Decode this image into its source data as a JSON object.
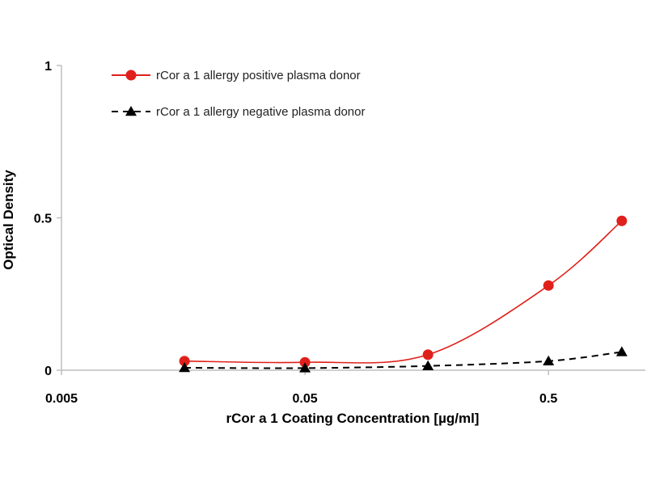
{
  "chart_data": {
    "type": "line",
    "title": "",
    "xlabel": "rCor a 1 Coating Concentration [µg/ml]",
    "ylabel": "Optical Density",
    "x_scale": "log",
    "xlim": [
      0.005,
      1.25
    ],
    "ylim": [
      0,
      1
    ],
    "x_ticks": [
      0.005,
      0.05,
      0.5
    ],
    "x_tick_labels": [
      "0.005",
      "0.05",
      "0.5"
    ],
    "y_ticks": [
      0,
      0.5,
      1
    ],
    "y_tick_labels": [
      "0",
      "0.5",
      "1"
    ],
    "grid": false,
    "legend_position": "top-left",
    "series": [
      {
        "name": "rCor a 1 allergy positive plasma donor",
        "color": "#e0201b",
        "line_style": "solid",
        "smooth": true,
        "marker": "circle",
        "x": [
          0.016,
          0.05,
          0.16,
          0.5,
          1.0
        ],
        "y": [
          0.03,
          0.026,
          0.051,
          0.278,
          0.49
        ]
      },
      {
        "name": "rCor a 1 allergy negative plasma donor",
        "color": "#000000",
        "line_style": "dashed",
        "smooth": true,
        "marker": "triangle",
        "x": [
          0.016,
          0.05,
          0.16,
          0.5,
          1.0
        ],
        "y": [
          0.008,
          0.007,
          0.014,
          0.03,
          0.06
        ]
      }
    ]
  }
}
